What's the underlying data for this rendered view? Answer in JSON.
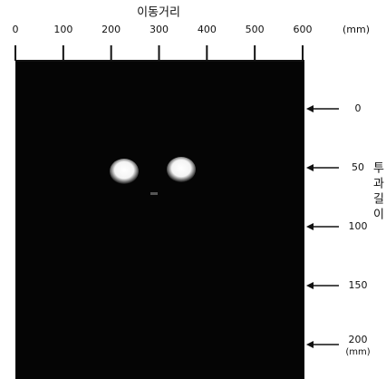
{
  "figure": {
    "top_axis": {
      "title": "이동거리",
      "ticks": [
        "0",
        "100",
        "200",
        "300",
        "400",
        "500",
        "600"
      ],
      "unit": "(mm)"
    },
    "right_axis": {
      "ticks": [
        "0",
        "50",
        "100",
        "150",
        "200"
      ],
      "unit": "(mm)"
    },
    "side_label": [
      "투",
      "과",
      "길",
      "이"
    ]
  }
}
